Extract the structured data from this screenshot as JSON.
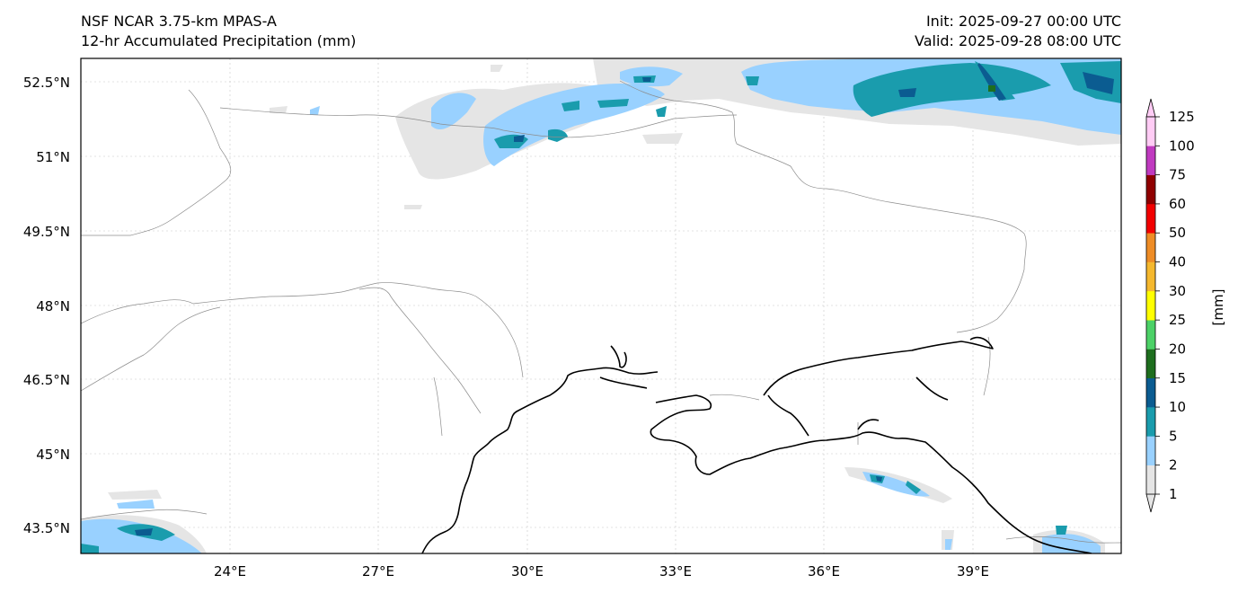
{
  "header": {
    "model": "NSF NCAR 3.75-km MPAS-A",
    "field": "12-hr Accumulated Precipitation (mm)",
    "init": "Init: 2025-09-27 00:00 UTC",
    "valid": "Valid: 2025-09-28 08:00 UTC"
  },
  "axes": {
    "lat_labels": [
      "52.5°N",
      "51°N",
      "49.5°N",
      "48°N",
      "46.5°N",
      "45°N",
      "43.5°N"
    ],
    "lon_labels": [
      "24°E",
      "27°E",
      "30°E",
      "33°E",
      "36°E",
      "39°E"
    ],
    "lon_range": [
      20.9,
      42.0
    ],
    "lat_range": [
      43.0,
      53.0
    ]
  },
  "colorbar": {
    "unit_label": "[mm]",
    "levels": [
      "1",
      "2",
      "5",
      "10",
      "15",
      "20",
      "25",
      "30",
      "40",
      "50",
      "60",
      "75",
      "100",
      "125"
    ],
    "colors": [
      "#e5e5e5",
      "#99d1ff",
      "#1a9cad",
      "#0b5c91",
      "#1e6e1e",
      "#4cd167",
      "#ffff00",
      "#f5b82e",
      "#ee8c26",
      "#f20000",
      "#8f0000",
      "#c03ac0",
      "#ffccf5"
    ]
  },
  "map_colors": {
    "coastline": "#000000",
    "borders": "#8c8c8c",
    "gridlines": "#c8c8c8"
  }
}
